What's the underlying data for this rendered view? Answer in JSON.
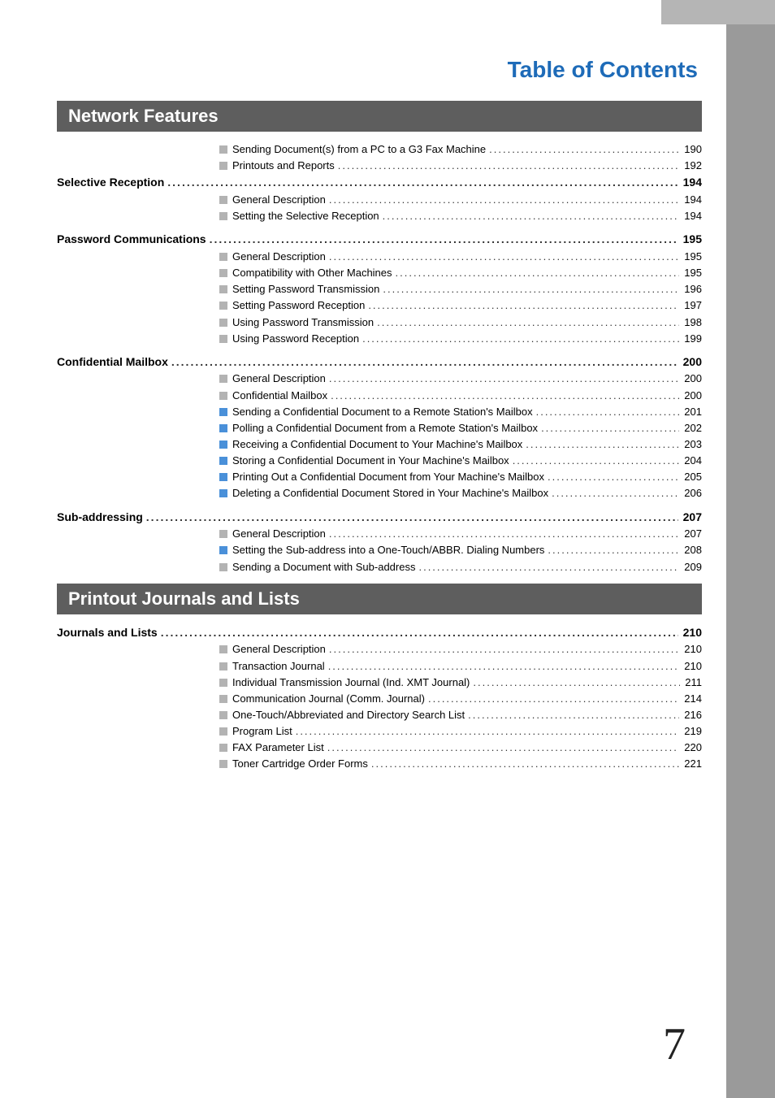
{
  "pageTitle": "Table of Contents",
  "pageNumber": "7",
  "colors": {
    "titleColor": "#1e6bb8",
    "sectionHeaderBg": "#5e5e5e",
    "sectionHeaderText": "#ffffff",
    "sidebarBg": "#9a9a9a",
    "topbarBg": "#b5b5b5",
    "bulletGray": "#b3b3b3",
    "bulletBlue": "#4a90d9"
  },
  "sections": [
    {
      "title": "Network Features",
      "orphanSubs": [
        {
          "bullet": "gray",
          "label": "Sending Document(s) from a PC to a G3 Fax Machine",
          "page": "190"
        },
        {
          "bullet": "gray",
          "label": "Printouts and Reports",
          "page": "192"
        }
      ],
      "groups": [
        {
          "main": {
            "label": "Selective Reception",
            "page": "194"
          },
          "subs": [
            {
              "bullet": "gray",
              "label": "General Description",
              "page": "194"
            },
            {
              "bullet": "gray",
              "label": "Setting the Selective Reception",
              "page": "194"
            }
          ]
        },
        {
          "main": {
            "label": "Password Communications",
            "page": "195"
          },
          "subs": [
            {
              "bullet": "gray",
              "label": "General Description",
              "page": "195"
            },
            {
              "bullet": "gray",
              "label": "Compatibility with Other Machines",
              "page": "195"
            },
            {
              "bullet": "gray",
              "label": "Setting Password Transmission",
              "page": "196"
            },
            {
              "bullet": "gray",
              "label": "Setting Password Reception",
              "page": "197"
            },
            {
              "bullet": "gray",
              "label": "Using Password Transmission",
              "page": "198"
            },
            {
              "bullet": "gray",
              "label": "Using Password Reception",
              "page": "199"
            }
          ]
        },
        {
          "main": {
            "label": "Confidential Mailbox",
            "page": "200"
          },
          "subs": [
            {
              "bullet": "gray",
              "label": "General Description",
              "page": "200"
            },
            {
              "bullet": "gray",
              "label": "Confidential Mailbox",
              "page": "200"
            },
            {
              "bullet": "blue",
              "label": "Sending a Confidential Document to a Remote Station's Mailbox",
              "page": "201"
            },
            {
              "bullet": "blue",
              "label": "Polling a Confidential Document from a Remote Station's Mailbox",
              "page": "202"
            },
            {
              "bullet": "blue",
              "label": "Receiving a Confidential Document to Your Machine's Mailbox",
              "page": "203"
            },
            {
              "bullet": "blue",
              "label": "Storing a Confidential Document in Your Machine's Mailbox",
              "page": "204"
            },
            {
              "bullet": "blue",
              "label": "Printing Out a Confidential Document from Your Machine's Mailbox",
              "page": "205"
            },
            {
              "bullet": "blue",
              "label": "Deleting a Confidential Document Stored in Your Machine's Mailbox",
              "page": "206"
            }
          ]
        },
        {
          "main": {
            "label": "Sub-addressing",
            "page": "207"
          },
          "subs": [
            {
              "bullet": "gray",
              "label": "General Description",
              "page": "207"
            },
            {
              "bullet": "blue",
              "label": "Setting the Sub-address into a One-Touch/ABBR. Dialing Numbers",
              "page": "208"
            },
            {
              "bullet": "gray",
              "label": "Sending a Document with Sub-address",
              "page": "209"
            }
          ]
        }
      ]
    },
    {
      "title": "Printout Journals and Lists",
      "orphanSubs": [],
      "groups": [
        {
          "main": {
            "label": "Journals and Lists",
            "page": "210"
          },
          "subs": [
            {
              "bullet": "gray",
              "label": "General Description",
              "page": "210"
            },
            {
              "bullet": "gray",
              "label": "Transaction Journal",
              "page": "210"
            },
            {
              "bullet": "gray",
              "label": "Individual Transmission Journal (Ind. XMT Journal)",
              "page": "211"
            },
            {
              "bullet": "gray",
              "label": "Communication Journal (Comm. Journal)",
              "page": "214"
            },
            {
              "bullet": "gray",
              "label": "One-Touch/Abbreviated and Directory Search List",
              "page": "216"
            },
            {
              "bullet": "gray",
              "label": "Program List",
              "page": "219"
            },
            {
              "bullet": "gray",
              "label": "FAX Parameter List",
              "page": "220"
            },
            {
              "bullet": "gray",
              "label": "Toner Cartridge Order Forms",
              "page": "221"
            }
          ]
        }
      ]
    }
  ]
}
